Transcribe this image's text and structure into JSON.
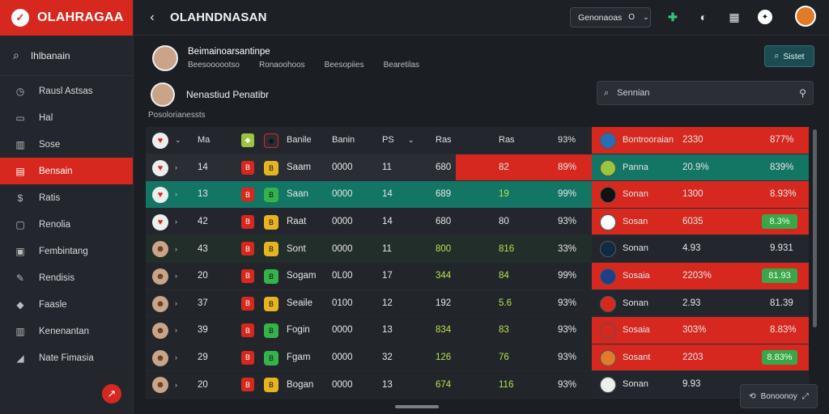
{
  "brand": {
    "name": "OLAHRAGAA",
    "logo_icon": "shield-check-icon"
  },
  "sidebar": {
    "search_label": "Ihlbanain",
    "items": [
      {
        "label": "Rausl Astsas",
        "icon": "clock-icon"
      },
      {
        "label": "Hal",
        "icon": "folder-icon"
      },
      {
        "label": "Sose",
        "icon": "chart-icon"
      },
      {
        "label": "Bensain",
        "icon": "message-icon",
        "active": true
      },
      {
        "label": "Ratis",
        "icon": "dollar-icon"
      },
      {
        "label": "Renolia",
        "icon": "card-icon"
      },
      {
        "label": "Fembintang",
        "icon": "monitor-icon"
      },
      {
        "label": "Rendisis",
        "icon": "edit-icon"
      },
      {
        "label": "Faasle",
        "icon": "diamond-icon"
      },
      {
        "label": "Kenenantan",
        "icon": "chart-icon"
      },
      {
        "label": "Nate Fimasia",
        "icon": "signal-icon"
      }
    ]
  },
  "topbar": {
    "title": "OLAHNDNASAN",
    "select_label": "Genonaoas",
    "select_value": "O"
  },
  "profile": {
    "name": "Beimainoarsantinpe",
    "meta": [
      "Beesoooootso",
      "Ronaoohoos",
      "Beesopiies",
      "Bearetilas"
    ],
    "start_label": "Sistet"
  },
  "subheader": {
    "title": "Nenastiud Penatibr",
    "search_placeholder": "Sennian",
    "section_label": "Posolorianessts"
  },
  "table": {
    "header": {
      "name": "Ma",
      "team": "Banile",
      "t2": "Banin",
      "pos": "PS",
      "n1": "Ras",
      "n2": "Ras",
      "pct": "93%"
    },
    "rows": [
      {
        "name": "14",
        "team": "Saam",
        "t2": "0000",
        "pos": "11",
        "n1": "680",
        "n2": "82",
        "pct": "89%",
        "b1": "#d6281f",
        "b2": "#e6b422",
        "style": "r1",
        "red": true
      },
      {
        "name": "13",
        "team": "Saan",
        "t2": "0000",
        "pos": "14",
        "n1": "689",
        "n2": "19",
        "pct": "99%",
        "b1": "#d6281f",
        "b2": "#35b24a",
        "style": "r2"
      },
      {
        "name": "42",
        "team": "Raat",
        "t2": "0000",
        "pos": "14",
        "n1": "680",
        "n2": "80",
        "pct": "93%",
        "b1": "#d6281f",
        "b2": "#e6b422",
        "style": "r3"
      },
      {
        "name": "43",
        "team": "Sont",
        "t2": "0000",
        "pos": "11",
        "n1": "800",
        "n2": "816",
        "pct": "33%",
        "b1": "#d6281f",
        "b2": "#e6b422",
        "style": "r4"
      },
      {
        "name": "20",
        "team": "Sogam",
        "t2": "0L00",
        "pos": "17",
        "n1": "344",
        "n2": "84",
        "pct": "99%",
        "b1": "#d6281f",
        "b2": "#35b24a",
        "style": "dark"
      },
      {
        "name": "37",
        "team": "Seaile",
        "t2": "0100",
        "pos": "12",
        "n1": "192",
        "n2": "5.6",
        "pct": "93%",
        "b1": "#d6281f",
        "b2": "#e6b422",
        "style": "dark"
      },
      {
        "name": "39",
        "team": "Fogin",
        "t2": "0000",
        "pos": "13",
        "n1": "834",
        "n2": "83",
        "pct": "93%",
        "b1": "#d6281f",
        "b2": "#35b24a",
        "style": "dark"
      },
      {
        "name": "29",
        "team": "Fgam",
        "t2": "0000",
        "pos": "32",
        "n1": "126",
        "n2": "76",
        "pct": "93%",
        "b1": "#d6281f",
        "b2": "#35b24a",
        "style": "dark"
      },
      {
        "name": "20",
        "team": "Bogan",
        "t2": "0000",
        "pos": "13",
        "n1": "674",
        "n2": "116",
        "pct": "93%",
        "b1": "#d6281f",
        "b2": "#e6b422",
        "style": "dark"
      }
    ]
  },
  "rpanel": {
    "rows": [
      {
        "name": "Bontrooraian",
        "v1": "2330",
        "v2": "877%",
        "style": "red",
        "flag": "#2a6db5",
        "pill": false
      },
      {
        "name": "Panna",
        "v1": "20.9%",
        "v2": "839%",
        "style": "teal",
        "flag": "#9bc53d",
        "pill": false
      },
      {
        "name": "Sonan",
        "v1": "1300",
        "v2": "8.93%",
        "style": "red",
        "flag": "#111111",
        "pill": false
      },
      {
        "name": "Sosan",
        "v1": "6035",
        "v2": "8.3%",
        "style": "red",
        "flag": "#ffffff",
        "pill": true
      },
      {
        "name": "Sonan",
        "v1": "4.93",
        "v2": "9.931",
        "style": "dark",
        "flag": "#0e2a45",
        "pill": false
      },
      {
        "name": "Sosaia",
        "v1": "2203%",
        "v2": "81.93",
        "style": "red",
        "flag": "#1f3f8a",
        "pill": true
      },
      {
        "name": "Sonan",
        "v1": "2.93",
        "v2": "81.39",
        "style": "dark",
        "flag": "#d6281f",
        "pill": false
      },
      {
        "name": "Sosaia",
        "v1": "303%",
        "v2": "8.83%",
        "style": "red",
        "flag": "#d6281f",
        "pill": false
      },
      {
        "name": "Sosant",
        "v1": "2203",
        "v2": "8.83%",
        "style": "red",
        "flag": "#e07b2a",
        "pill": true
      },
      {
        "name": "Sonan",
        "v1": "9.93",
        "v2": "",
        "style": "dark",
        "flag": "#eeeeee",
        "pill": false
      }
    ]
  },
  "toast": {
    "label": "Bonoonoy"
  }
}
